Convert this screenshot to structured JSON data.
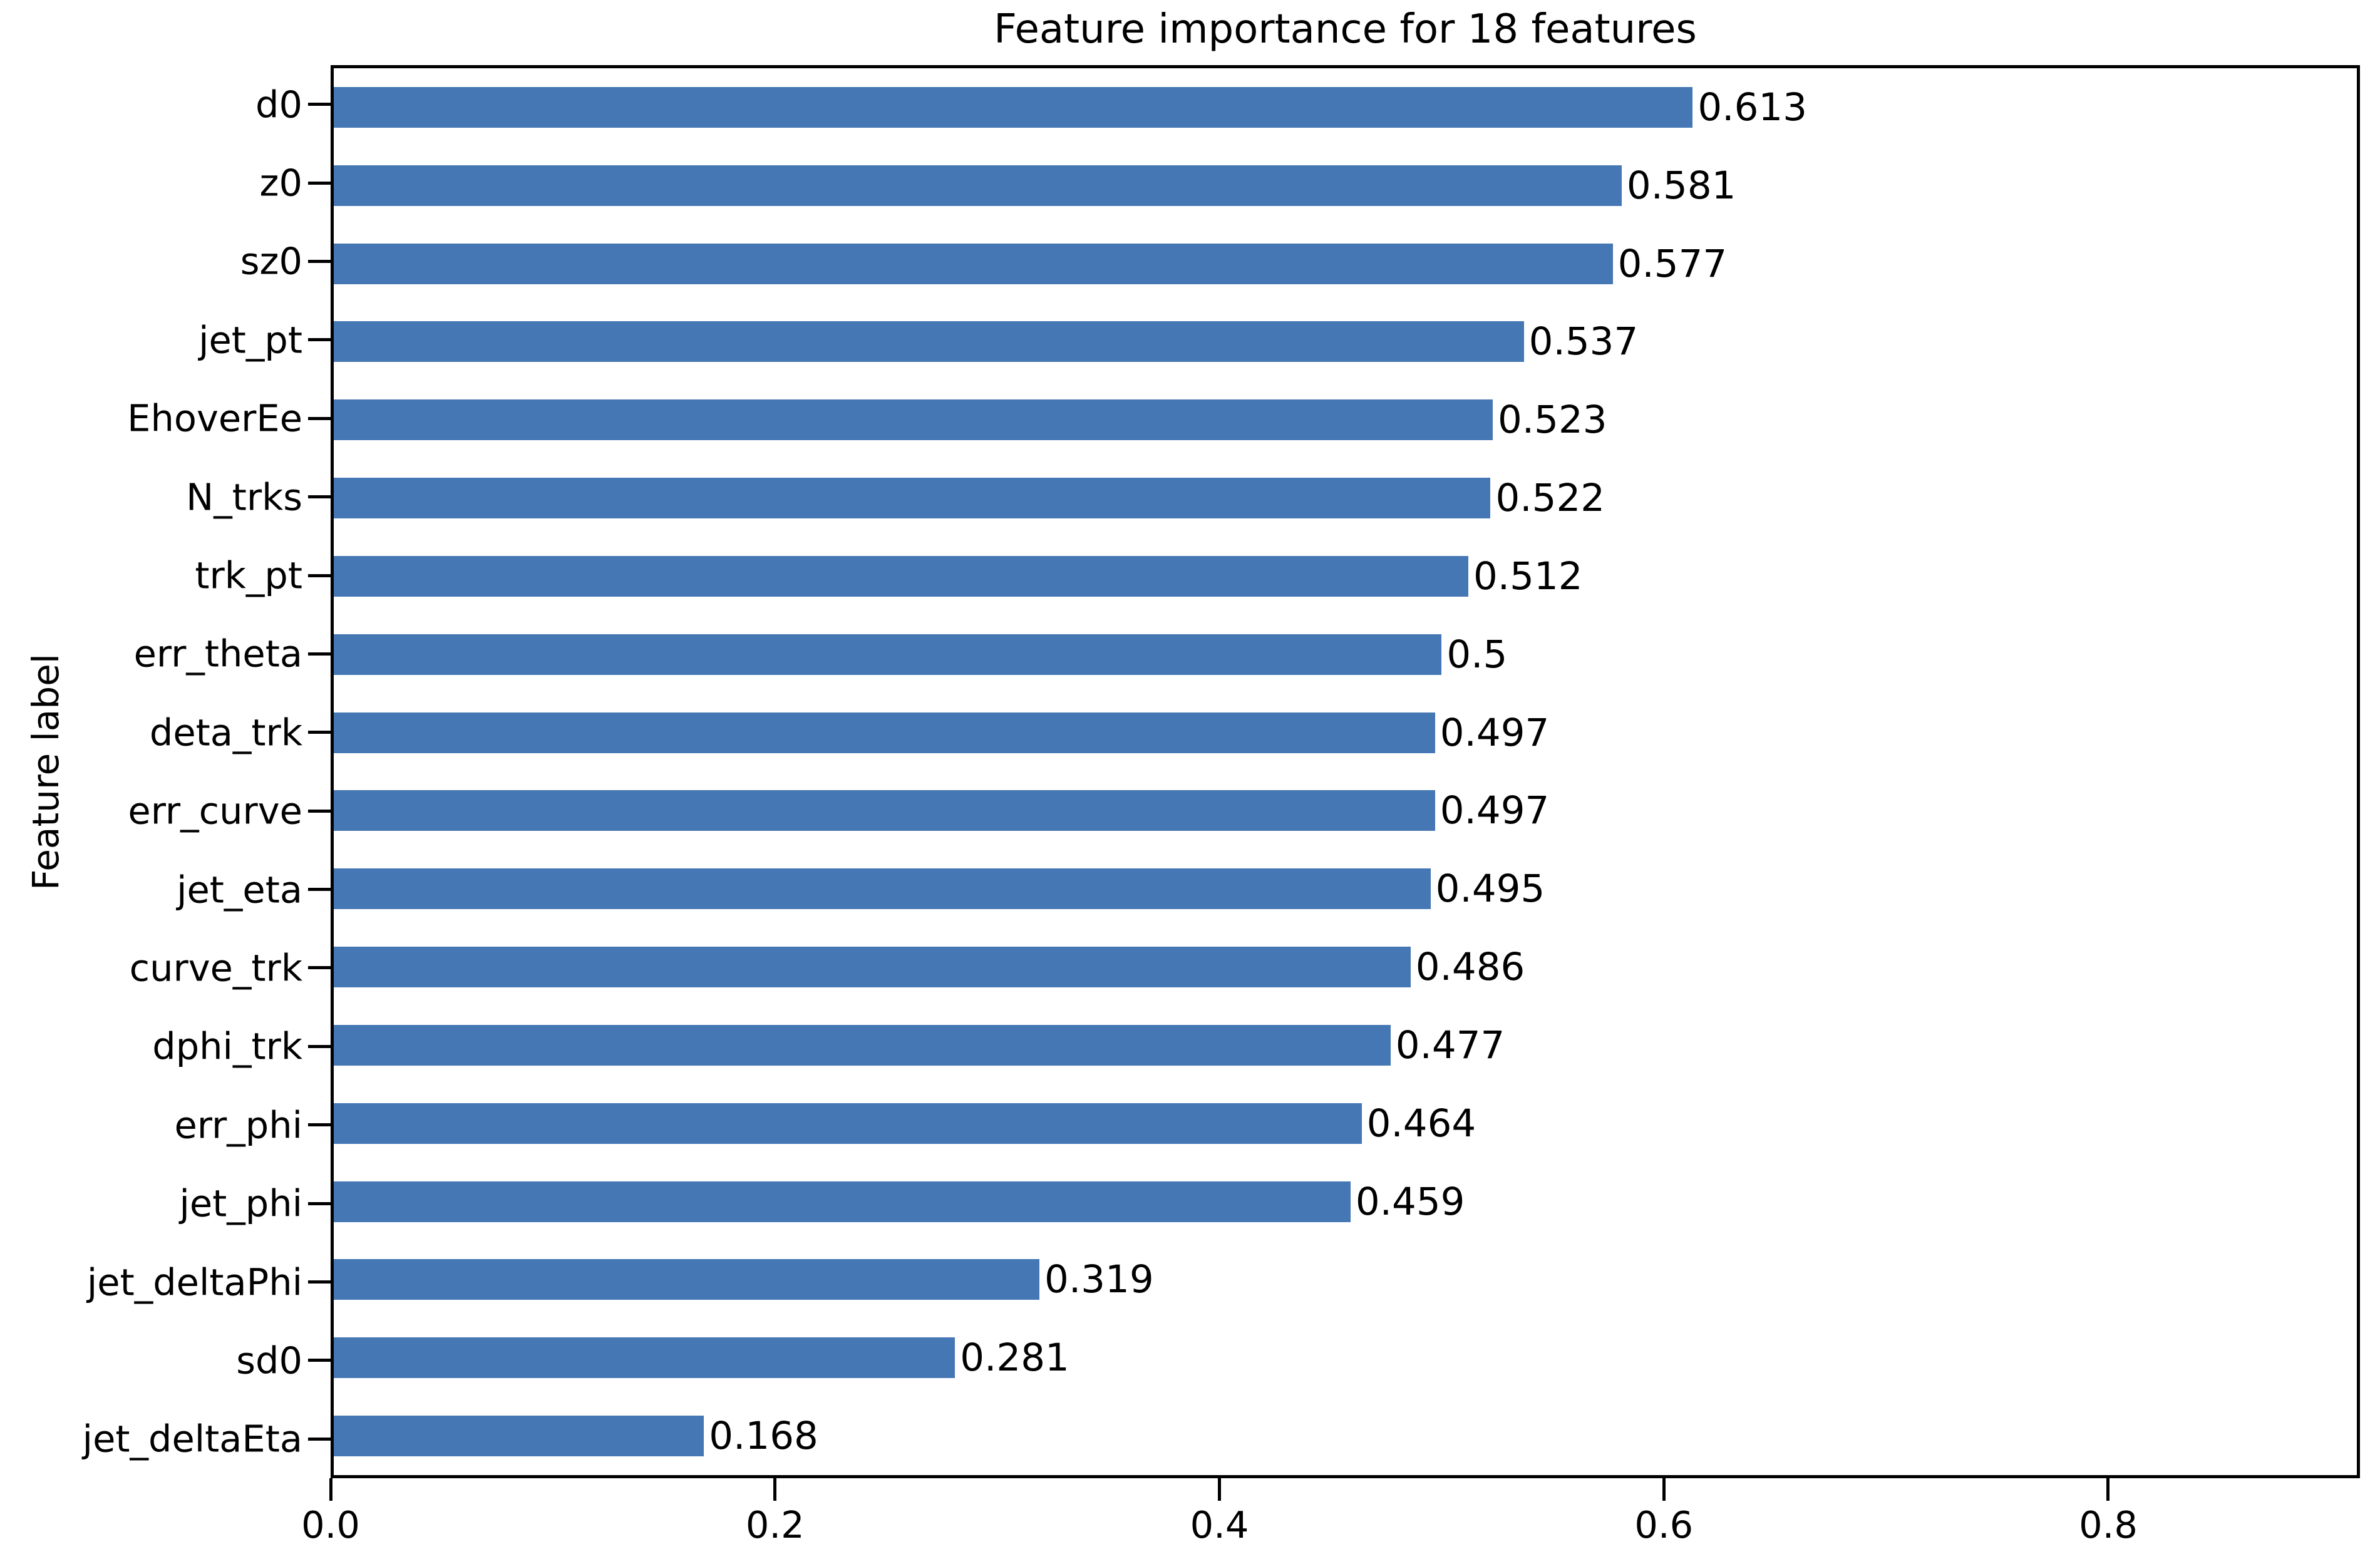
{
  "chart_data": {
    "type": "bar",
    "orientation": "horizontal",
    "title": "Feature importance for 18 features",
    "xlabel": "",
    "ylabel": "Feature label",
    "categories": [
      "d0",
      "z0",
      "sz0",
      "jet_pt",
      "EhoverEe",
      "N_trks",
      "trk_pt",
      "err_theta",
      "deta_trk",
      "err_curve",
      "jet_eta",
      "curve_trk",
      "dphi_trk",
      "err_phi",
      "jet_phi",
      "jet_deltaPhi",
      "sd0",
      "jet_deltaEta"
    ],
    "values": [
      0.613,
      0.581,
      0.577,
      0.537,
      0.523,
      0.522,
      0.512,
      0.5,
      0.497,
      0.497,
      0.495,
      0.486,
      0.477,
      0.464,
      0.459,
      0.319,
      0.281,
      0.168
    ],
    "value_labels": [
      "0.613",
      "0.581",
      "0.577",
      "0.537",
      "0.523",
      "0.522",
      "0.512",
      "0.5",
      "0.497",
      "0.497",
      "0.495",
      "0.486",
      "0.477",
      "0.464",
      "0.459",
      "0.319",
      "0.281",
      "0.168"
    ],
    "xlim": [
      0,
      0.913
    ],
    "xticks": [
      0.0,
      0.2,
      0.4,
      0.6,
      0.8
    ],
    "xtick_labels": [
      "0.0",
      "0.2",
      "0.4",
      "0.6",
      "0.8"
    ],
    "bar_color": "#4577b4",
    "text_color": "#000000",
    "grid": false,
    "legend": null
  }
}
